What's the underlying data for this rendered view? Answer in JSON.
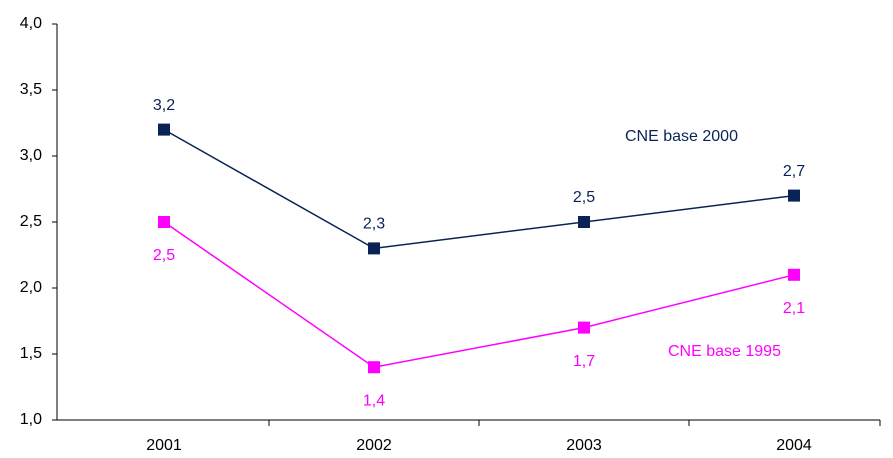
{
  "chart_data": {
    "type": "line",
    "categories": [
      "2001",
      "2002",
      "2003",
      "2004"
    ],
    "series": [
      {
        "name": "CNE base 2000",
        "color": "#0a2357",
        "values": [
          3.2,
          2.3,
          2.5,
          2.7
        ],
        "value_labels": [
          "3,2",
          "2,3",
          "2,5",
          "2,7"
        ]
      },
      {
        "name": "CNE base 1995",
        "color": "#ff00ff",
        "values": [
          2.5,
          1.4,
          1.7,
          2.1
        ],
        "value_labels": [
          "2,5",
          "1,4",
          "1,7",
          "2,1"
        ]
      }
    ],
    "ylim": [
      1.0,
      4.0
    ],
    "yticks": [
      {
        "value": 1.0,
        "label": "1,0"
      },
      {
        "value": 1.5,
        "label": "1,5"
      },
      {
        "value": 2.0,
        "label": "2,0"
      },
      {
        "value": 2.5,
        "label": "2,5"
      },
      {
        "value": 3.0,
        "label": "3,0"
      },
      {
        "value": 3.5,
        "label": "3,5"
      },
      {
        "value": 4.0,
        "label": "4,0"
      }
    ],
    "grid": false
  }
}
